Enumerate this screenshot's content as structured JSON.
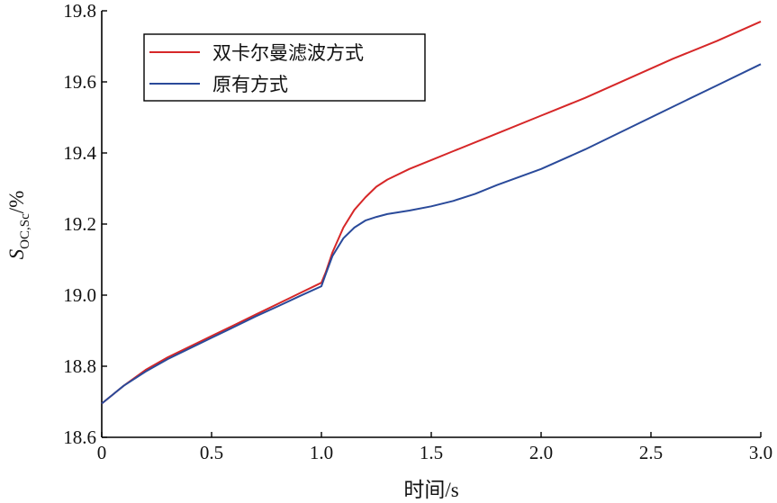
{
  "chart_data": {
    "type": "line",
    "xlabel": "时间/s",
    "ylabel": {
      "main": "S",
      "sub": "OC,Sc",
      "suffix": "/%"
    },
    "xlim": [
      0,
      3.0
    ],
    "ylim": [
      18.6,
      19.8
    ],
    "xticks": [
      0,
      0.5,
      1.0,
      1.5,
      2.0,
      2.5,
      3.0
    ],
    "xtick_labels": [
      "0",
      "0.5",
      "1.0",
      "1.5",
      "2.0",
      "2.5",
      "3.0"
    ],
    "yticks": [
      18.6,
      18.8,
      19.0,
      19.2,
      19.4,
      19.6,
      19.8
    ],
    "ytick_labels": [
      "18.6",
      "18.8",
      "19.0",
      "19.2",
      "19.4",
      "19.6",
      "19.8"
    ],
    "grid": false,
    "legend_position": "top-left",
    "series": [
      {
        "name": "双卡尔曼滤波方式",
        "color": "#d62728",
        "x": [
          0,
          0.05,
          0.1,
          0.2,
          0.3,
          0.4,
          0.5,
          0.6,
          0.7,
          0.8,
          0.9,
          1.0,
          1.02,
          1.05,
          1.1,
          1.15,
          1.2,
          1.25,
          1.3,
          1.4,
          1.5,
          1.6,
          1.8,
          2.0,
          2.2,
          2.4,
          2.6,
          2.8,
          3.0
        ],
        "y": [
          18.695,
          18.72,
          18.745,
          18.79,
          18.825,
          18.855,
          18.885,
          18.915,
          18.945,
          18.975,
          19.005,
          19.035,
          19.065,
          19.12,
          19.19,
          19.24,
          19.275,
          19.305,
          19.325,
          19.355,
          19.38,
          19.405,
          19.455,
          19.505,
          19.555,
          19.61,
          19.665,
          19.715,
          19.77
        ]
      },
      {
        "name": "原有方式",
        "color": "#2a4a9a",
        "x": [
          0,
          0.05,
          0.1,
          0.2,
          0.3,
          0.4,
          0.5,
          0.6,
          0.7,
          0.8,
          0.9,
          1.0,
          1.02,
          1.05,
          1.1,
          1.15,
          1.2,
          1.25,
          1.3,
          1.4,
          1.5,
          1.6,
          1.7,
          1.8,
          2.0,
          2.2,
          2.4,
          2.6,
          2.8,
          3.0
        ],
        "y": [
          18.695,
          18.72,
          18.745,
          18.785,
          18.82,
          18.85,
          18.88,
          18.91,
          18.94,
          18.968,
          18.997,
          19.025,
          19.06,
          19.11,
          19.16,
          19.19,
          19.21,
          19.22,
          19.228,
          19.238,
          19.25,
          19.265,
          19.285,
          19.31,
          19.355,
          19.41,
          19.47,
          19.53,
          19.59,
          19.65
        ]
      }
    ]
  }
}
